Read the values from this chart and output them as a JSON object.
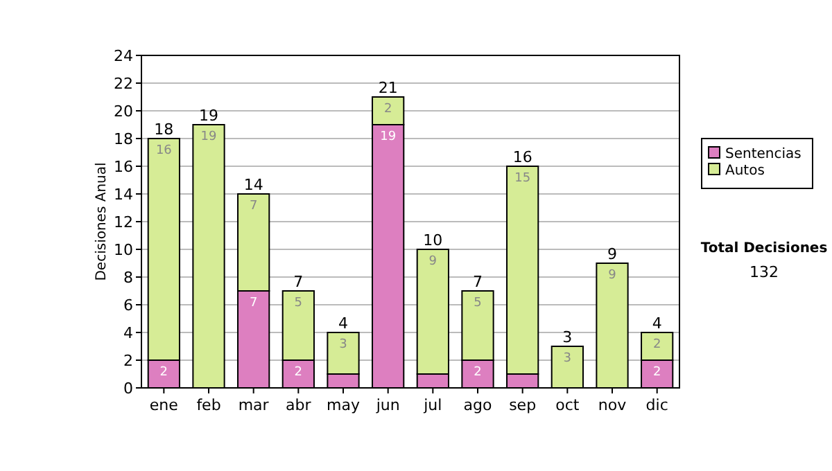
{
  "chart_data": {
    "type": "bar",
    "stacked": true,
    "ylabel": "Decisiones Anual",
    "categories": [
      "ene",
      "feb",
      "mar",
      "abr",
      "may",
      "jun",
      "jul",
      "ago",
      "sep",
      "oct",
      "nov",
      "dic"
    ],
    "series": [
      {
        "name": "Sentencias",
        "color": "#dd7fc0",
        "values": [
          2,
          0,
          7,
          2,
          1,
          19,
          1,
          2,
          1,
          0,
          0,
          2
        ],
        "value_labels": [
          "2",
          null,
          "7",
          "2",
          null,
          "19",
          null,
          "2",
          null,
          null,
          null,
          "2"
        ]
      },
      {
        "name": "Autos",
        "color": "#d6ec96",
        "values": [
          16,
          19,
          7,
          5,
          3,
          2,
          9,
          5,
          15,
          3,
          9,
          2
        ],
        "value_labels": [
          "16",
          "19",
          "7",
          "5",
          "3",
          "2",
          "9",
          "5",
          "15",
          "3",
          "9",
          "2"
        ]
      }
    ],
    "totals": [
      "18",
      "19",
      "14",
      "7",
      "4",
      "21",
      "10",
      "7",
      "16",
      "3",
      "9",
      "4"
    ],
    "ylim": [
      0,
      24
    ],
    "yticks": [
      0,
      2,
      4,
      6,
      8,
      10,
      12,
      14,
      16,
      18,
      20,
      22,
      24
    ],
    "grid": "y",
    "legend": "right",
    "annotations": [
      "Total Decisiones",
      "132"
    ]
  }
}
